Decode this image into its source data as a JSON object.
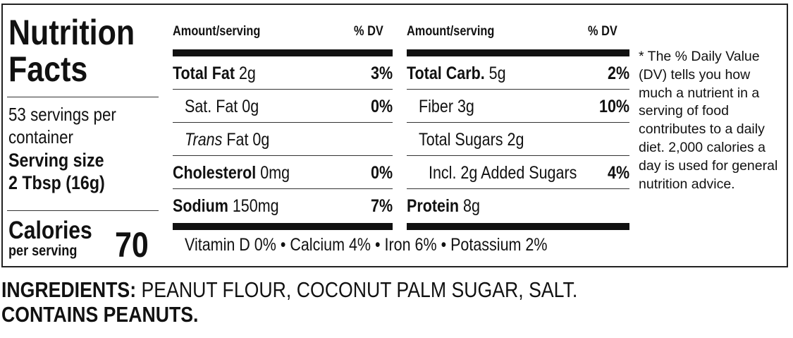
{
  "header": {
    "title": "Nutrition Facts"
  },
  "servings": "53 servings per container",
  "serving_size": {
    "label": "Serving size",
    "value": "2 Tbsp (16g)"
  },
  "calories": {
    "label": "Calories",
    "sublabel": "per serving",
    "value": 70
  },
  "columns": [
    {
      "amount_header": "Amount/serving",
      "dv_header": "% DV",
      "rows": [
        {
          "name": "Total Fat",
          "amount": "2g",
          "dv": "3%",
          "bold": true,
          "indent": 0
        },
        {
          "name": "Sat. Fat",
          "amount": "0g",
          "dv": "0%",
          "bold": false,
          "indent": 1
        },
        {
          "name_italic": "Trans",
          "name": "Fat",
          "amount": "0g",
          "bold": false,
          "indent": 1
        },
        {
          "name": "Cholesterol",
          "amount": "0mg",
          "dv": "0%",
          "bold": true,
          "indent": 0
        },
        {
          "name": "Sodium",
          "amount": "150mg",
          "dv": "7%",
          "bold": true,
          "indent": 0
        }
      ]
    },
    {
      "amount_header": "Amount/serving",
      "dv_header": "% DV",
      "rows": [
        {
          "name": "Total Carb.",
          "amount": "5g",
          "dv": "2%",
          "bold": true,
          "indent": 0
        },
        {
          "name": "Fiber",
          "amount": "3g",
          "dv": "10%",
          "bold": false,
          "indent": 1
        },
        {
          "name": "Total Sugars",
          "amount": "2g",
          "bold": false,
          "indent": 1
        },
        {
          "name": "Incl. 2g Added Sugars",
          "dv": "4%",
          "bold": false,
          "indent": 2
        },
        {
          "name": "Protein",
          "amount": "8g",
          "bold": true,
          "indent": 0
        }
      ]
    }
  ],
  "vitamins": "Vitamin D 0% • Calcium 4% • Iron 6% • Potassium 2%",
  "footnote": "* The % Daily Value (DV) tells you how much a nutrient in a serving of food contributes to a daily diet. 2,000 calories a day is used for general nutrition advice.",
  "ingredients": {
    "label": "INGREDIENTS:",
    "text": "PEANUT FLOUR, COCONUT PALM SUGAR, SALT.",
    "contains": "CONTAINS PEANUTS."
  }
}
